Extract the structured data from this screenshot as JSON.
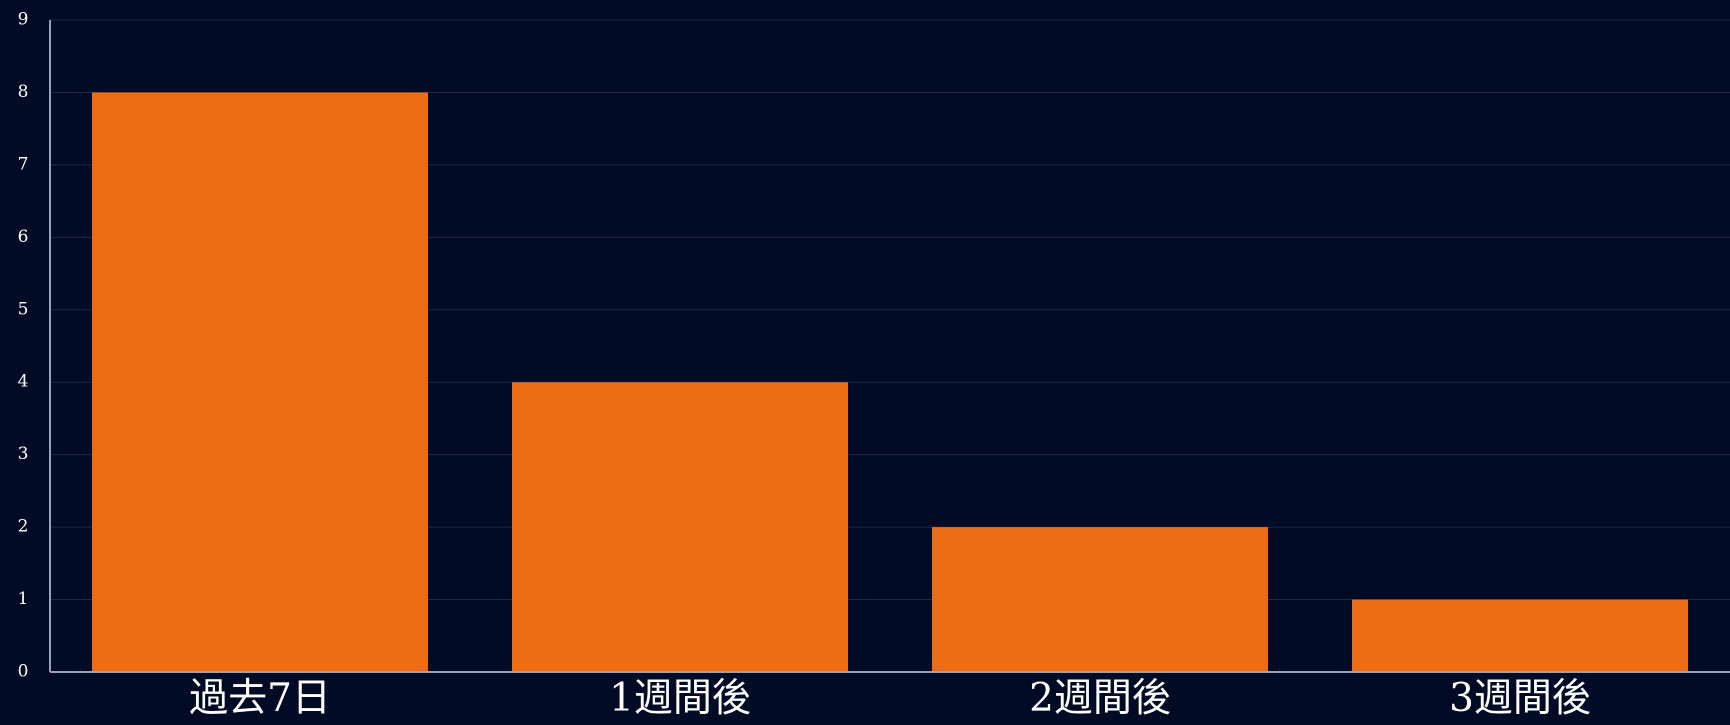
{
  "chart_data": {
    "type": "bar",
    "categories": [
      "過去7日",
      "1週間後",
      "2週間後",
      "3週間後"
    ],
    "values": [
      8,
      4,
      2,
      1
    ],
    "ylim": [
      0,
      9
    ],
    "yticks": [
      0,
      1,
      2,
      3,
      4,
      5,
      6,
      7,
      8,
      9
    ],
    "grid": true,
    "legend": "none",
    "colors": {
      "background": "#020b25",
      "bar": "#ec6d16",
      "grid": "#1d2a45",
      "axis": "#9aa3b5",
      "text": "#ffffff"
    }
  }
}
